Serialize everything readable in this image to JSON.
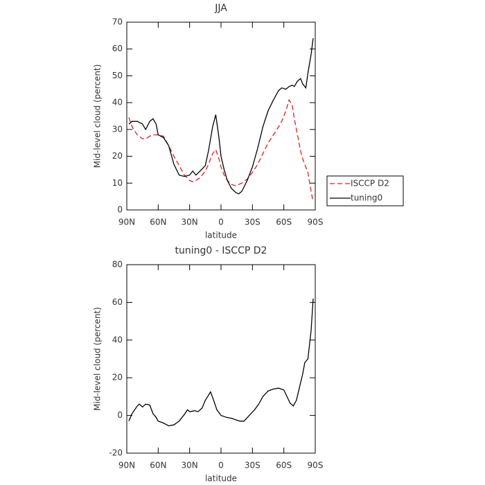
{
  "chart_data": [
    {
      "type": "line",
      "title": "JJA",
      "xlabel": "latitude",
      "ylabel": "Mid-level cloud (percent)",
      "x": [
        88,
        85,
        80,
        75,
        72,
        68,
        65,
        62,
        60,
        55,
        50,
        45,
        40,
        35,
        30,
        27,
        24,
        20,
        15,
        12,
        8,
        5,
        2,
        0,
        -3,
        -6,
        -10,
        -14,
        -17,
        -20,
        -25,
        -30,
        -35,
        -40,
        -45,
        -50,
        -55,
        -58,
        -62,
        -65,
        -68,
        -70,
        -73,
        -76,
        -78,
        -81,
        -83,
        -86,
        -88
      ],
      "xlim": [
        90,
        -90
      ],
      "xticks": [
        {
          "value": 90,
          "label": "90N"
        },
        {
          "value": 60,
          "label": "60N"
        },
        {
          "value": 30,
          "label": "30N"
        },
        0,
        {
          "value": -30,
          "label": "30S"
        },
        {
          "value": -60,
          "label": "60S"
        },
        {
          "value": -90,
          "label": "90S"
        }
      ],
      "ylim": [
        0,
        70
      ],
      "yticks": [
        0,
        10,
        20,
        30,
        40,
        50,
        60,
        70
      ],
      "legend": "right",
      "series": [
        {
          "name": "ISCCP D2",
          "color": "#e41a1c",
          "dashed": true,
          "values": [
            34.5,
            31,
            28,
            26.5,
            26.5,
            27.5,
            28,
            28,
            28,
            27.5,
            24,
            20,
            16.5,
            13,
            11,
            10.5,
            11,
            12,
            14.5,
            17,
            21,
            22.5,
            19,
            16,
            13,
            11,
            9.5,
            9,
            9.5,
            10,
            11.5,
            14,
            17,
            21,
            25,
            28,
            31,
            33,
            37,
            41,
            39,
            34,
            28,
            22,
            19,
            16,
            14,
            7,
            3
          ]
        },
        {
          "name": "tuning0",
          "color": "#000000",
          "dashed": false,
          "values": [
            32,
            33,
            33,
            32,
            30,
            33,
            34,
            32,
            28,
            27,
            24,
            17,
            13,
            12.5,
            13,
            14.5,
            13,
            14.5,
            16.5,
            22,
            31,
            35.5,
            27,
            20,
            15,
            11,
            8,
            6.5,
            6,
            7,
            11,
            16,
            23,
            31,
            37,
            41,
            44.5,
            45.5,
            45,
            46,
            46.5,
            46,
            48,
            49,
            47,
            45.5,
            51,
            58,
            64
          ]
        }
      ]
    },
    {
      "type": "line",
      "title": "tuning0 - ISCCP D2",
      "xlabel": "latitude",
      "ylabel": "Mid-level cloud (percent)",
      "x": [
        88,
        85,
        80,
        78,
        75,
        72,
        68,
        65,
        62,
        60,
        55,
        50,
        45,
        40,
        35,
        32,
        30,
        25,
        22,
        18,
        15,
        10,
        7,
        4,
        0,
        -5,
        -10,
        -15,
        -18,
        -22,
        -27,
        -32,
        -36,
        -40,
        -45,
        -50,
        -55,
        -60,
        -63,
        -66,
        -69,
        -72,
        -75,
        -78,
        -80,
        -83,
        -86,
        -88
      ],
      "xlim": [
        90,
        -90
      ],
      "xticks": [
        {
          "value": 90,
          "label": "90N"
        },
        {
          "value": 60,
          "label": "60N"
        },
        {
          "value": 30,
          "label": "30N"
        },
        0,
        {
          "value": -30,
          "label": "30S"
        },
        {
          "value": -60,
          "label": "60S"
        },
        {
          "value": -90,
          "label": "90S"
        }
      ],
      "ylim": [
        -20,
        80
      ],
      "yticks": [
        -20,
        0,
        20,
        40,
        60,
        80
      ],
      "series": [
        {
          "color": "#000000",
          "dashed": false,
          "values": [
            -3,
            1,
            5,
            6,
            4.5,
            6,
            5.5,
            1,
            -1,
            -3,
            -4,
            -5.5,
            -5,
            -3,
            0.5,
            3,
            2,
            2.5,
            2,
            4,
            8,
            12.5,
            8,
            3,
            0,
            -1,
            -1.5,
            -2.5,
            -3,
            -3,
            0,
            3,
            6,
            10,
            13,
            14,
            14.5,
            13.5,
            10,
            6.5,
            5,
            8,
            15,
            22,
            28,
            30,
            45,
            62
          ]
        }
      ]
    }
  ]
}
